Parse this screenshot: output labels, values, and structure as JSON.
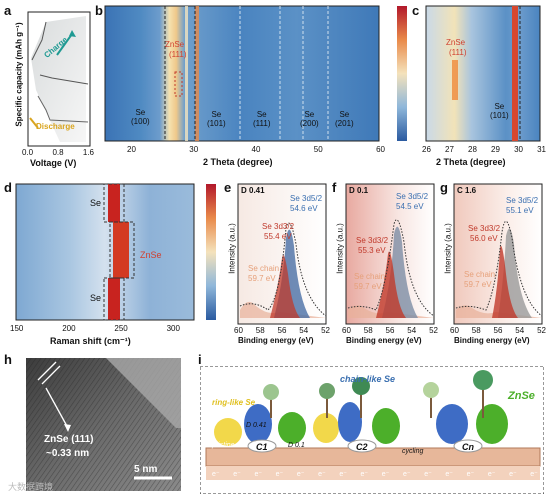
{
  "panels": {
    "a": {
      "letter": "a",
      "ylabel": "Specific capacity (mAh g⁻¹)",
      "xlabel": "Voltage (V)",
      "xticks": [
        "0.0",
        "0.8",
        "1.6"
      ],
      "charge": "Charge",
      "discharge": "Discharge"
    },
    "b": {
      "letter": "b",
      "xlabel": "2 Theta (degree)",
      "xticks": [
        "20",
        "30",
        "40",
        "50",
        "60"
      ],
      "labels": [
        {
          "l1": "Se",
          "l2": "(100)"
        },
        {
          "l1": "ZnSe",
          "l2": "(111)"
        },
        {
          "l1": "Se",
          "l2": "(101)"
        },
        {
          "l1": "Se",
          "l2": "(111)"
        },
        {
          "l1": "Se",
          "l2": "(200)"
        },
        {
          "l1": "Se",
          "l2": "(201)"
        }
      ]
    },
    "c": {
      "letter": "c",
      "xlabel": "2 Theta (degree)",
      "xticks": [
        "26",
        "27",
        "28",
        "29",
        "30",
        "31"
      ],
      "labels": [
        {
          "l1": "ZnSe",
          "l2": "(111)"
        },
        {
          "l1": "Se",
          "l2": "(101)"
        }
      ]
    },
    "d": {
      "letter": "d",
      "xlabel": "Raman shift (cm⁻¹)",
      "xticks": [
        "150",
        "200",
        "250",
        "300"
      ],
      "labels": [
        "Se",
        "ZnSe",
        "Se"
      ]
    },
    "e": {
      "letter": "e",
      "tag": "D 0.41",
      "ylabel": "Intensity (a.u.)",
      "xlabel": "Binding energy (eV)",
      "xticks": [
        "60",
        "58",
        "56",
        "54",
        "52"
      ],
      "peak1": "Se 3d5/2",
      "val1": "54.6 eV",
      "peak2": "Se 3d3/2",
      "val2": "55.4 eV",
      "chain": "Se chain",
      "val3": "59.7 eV"
    },
    "f": {
      "letter": "f",
      "tag": "D 0.1",
      "ylabel": "Intensity (a.u.)",
      "xlabel": "Binding energy (eV)",
      "xticks": [
        "60",
        "58",
        "56",
        "54",
        "52"
      ],
      "peak1": "Se 3d5/2",
      "val1": "54.5 eV",
      "peak2": "Se 3d3/2",
      "val2": "55.3 eV",
      "chain": "Se chain",
      "val3": "59.7 eV"
    },
    "g": {
      "letter": "g",
      "tag": "C 1.6",
      "ylabel": "Intensity (a.u.)",
      "xlabel": "Binding energy (eV)",
      "xticks": [
        "60",
        "58",
        "56",
        "54",
        "52"
      ],
      "peak1": "Se 3d5/2",
      "val1": "55.1 eV",
      "peak2": "Se 3d3/2",
      "val2": "56.0 eV",
      "chain": "Se chain",
      "val3": "59.7 eV"
    },
    "h": {
      "letter": "h",
      "label1": "ZnSe (111)",
      "label2": "~0.33 nm",
      "scalebar": "5 nm",
      "watermark": "大数据跨境"
    },
    "i": {
      "letter": "i",
      "ring": "ring-like Se",
      "chain": "chain-like Se",
      "znse": "ZnSe",
      "pristine": "pristine",
      "d041": "D 0.41",
      "d01": "D 0.1",
      "c1": "C1",
      "c2": "C2",
      "cycling": "cycling",
      "cn": "Cn",
      "electron": "e⁻"
    }
  },
  "colors": {
    "heat_low": "#2a5aa0",
    "heat_mid": "#f2e8c8",
    "heat_high": "#c8231f",
    "xps_red": "#c0392b",
    "xps_blue": "#3a6fb0",
    "xps_chain": "#e6a07a",
    "znse_green": "#4caf2a",
    "charge_teal": "#1f9a93",
    "discharge_gold": "#d9a520"
  }
}
